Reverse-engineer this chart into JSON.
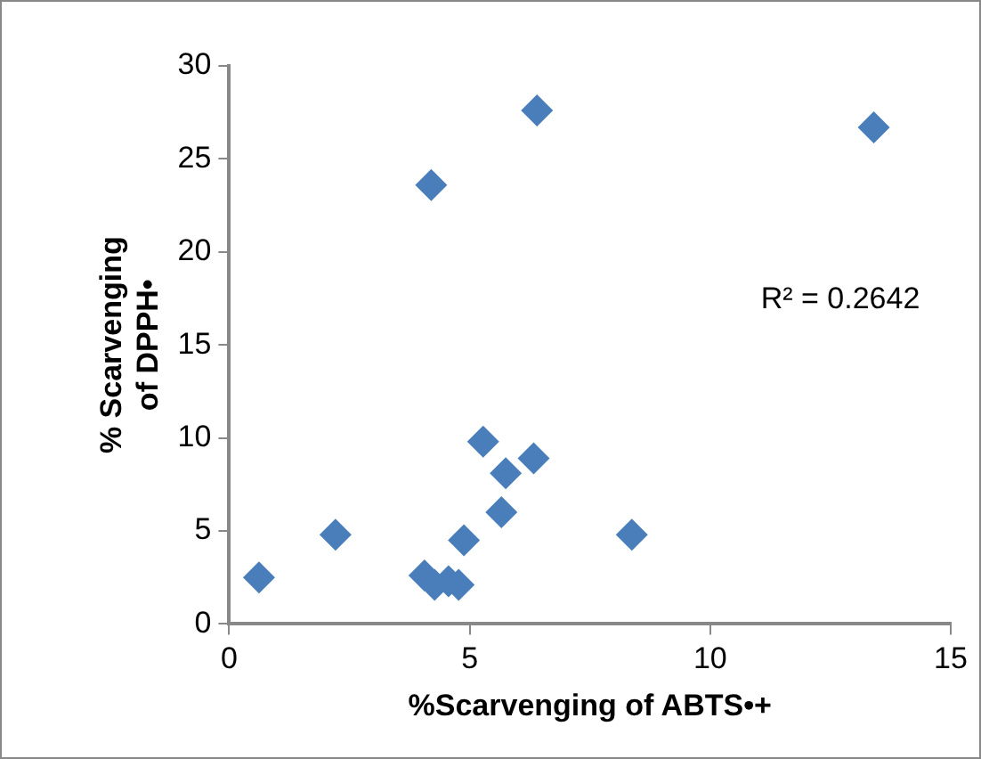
{
  "chart_data": {
    "type": "scatter",
    "xlabel": "%Scarvenging of ABTS•+",
    "ylabel": "% Scarvenging of DPPH•",
    "x": [
      0.62,
      2.21,
      4.06,
      4.27,
      4.56,
      4.77,
      4.88,
      5.66,
      5.75,
      5.28,
      6.33,
      8.37,
      4.2,
      6.4,
      13.4
    ],
    "values": [
      2.5,
      4.8,
      2.6,
      2.1,
      2.3,
      2.1,
      4.5,
      6.0,
      8.1,
      9.8,
      8.9,
      4.8,
      23.6,
      27.6,
      26.7
    ],
    "color": "#4a7ebb",
    "marker": "diamond",
    "xlim": [
      0,
      15
    ],
    "xticks": [
      0,
      5,
      10,
      15
    ],
    "ylim": [
      0,
      30
    ],
    "yticks": [
      0,
      5,
      10,
      15,
      20,
      25,
      30
    ],
    "grid": false,
    "legend": false,
    "annotations": [
      "R² = 0.2642"
    ]
  }
}
